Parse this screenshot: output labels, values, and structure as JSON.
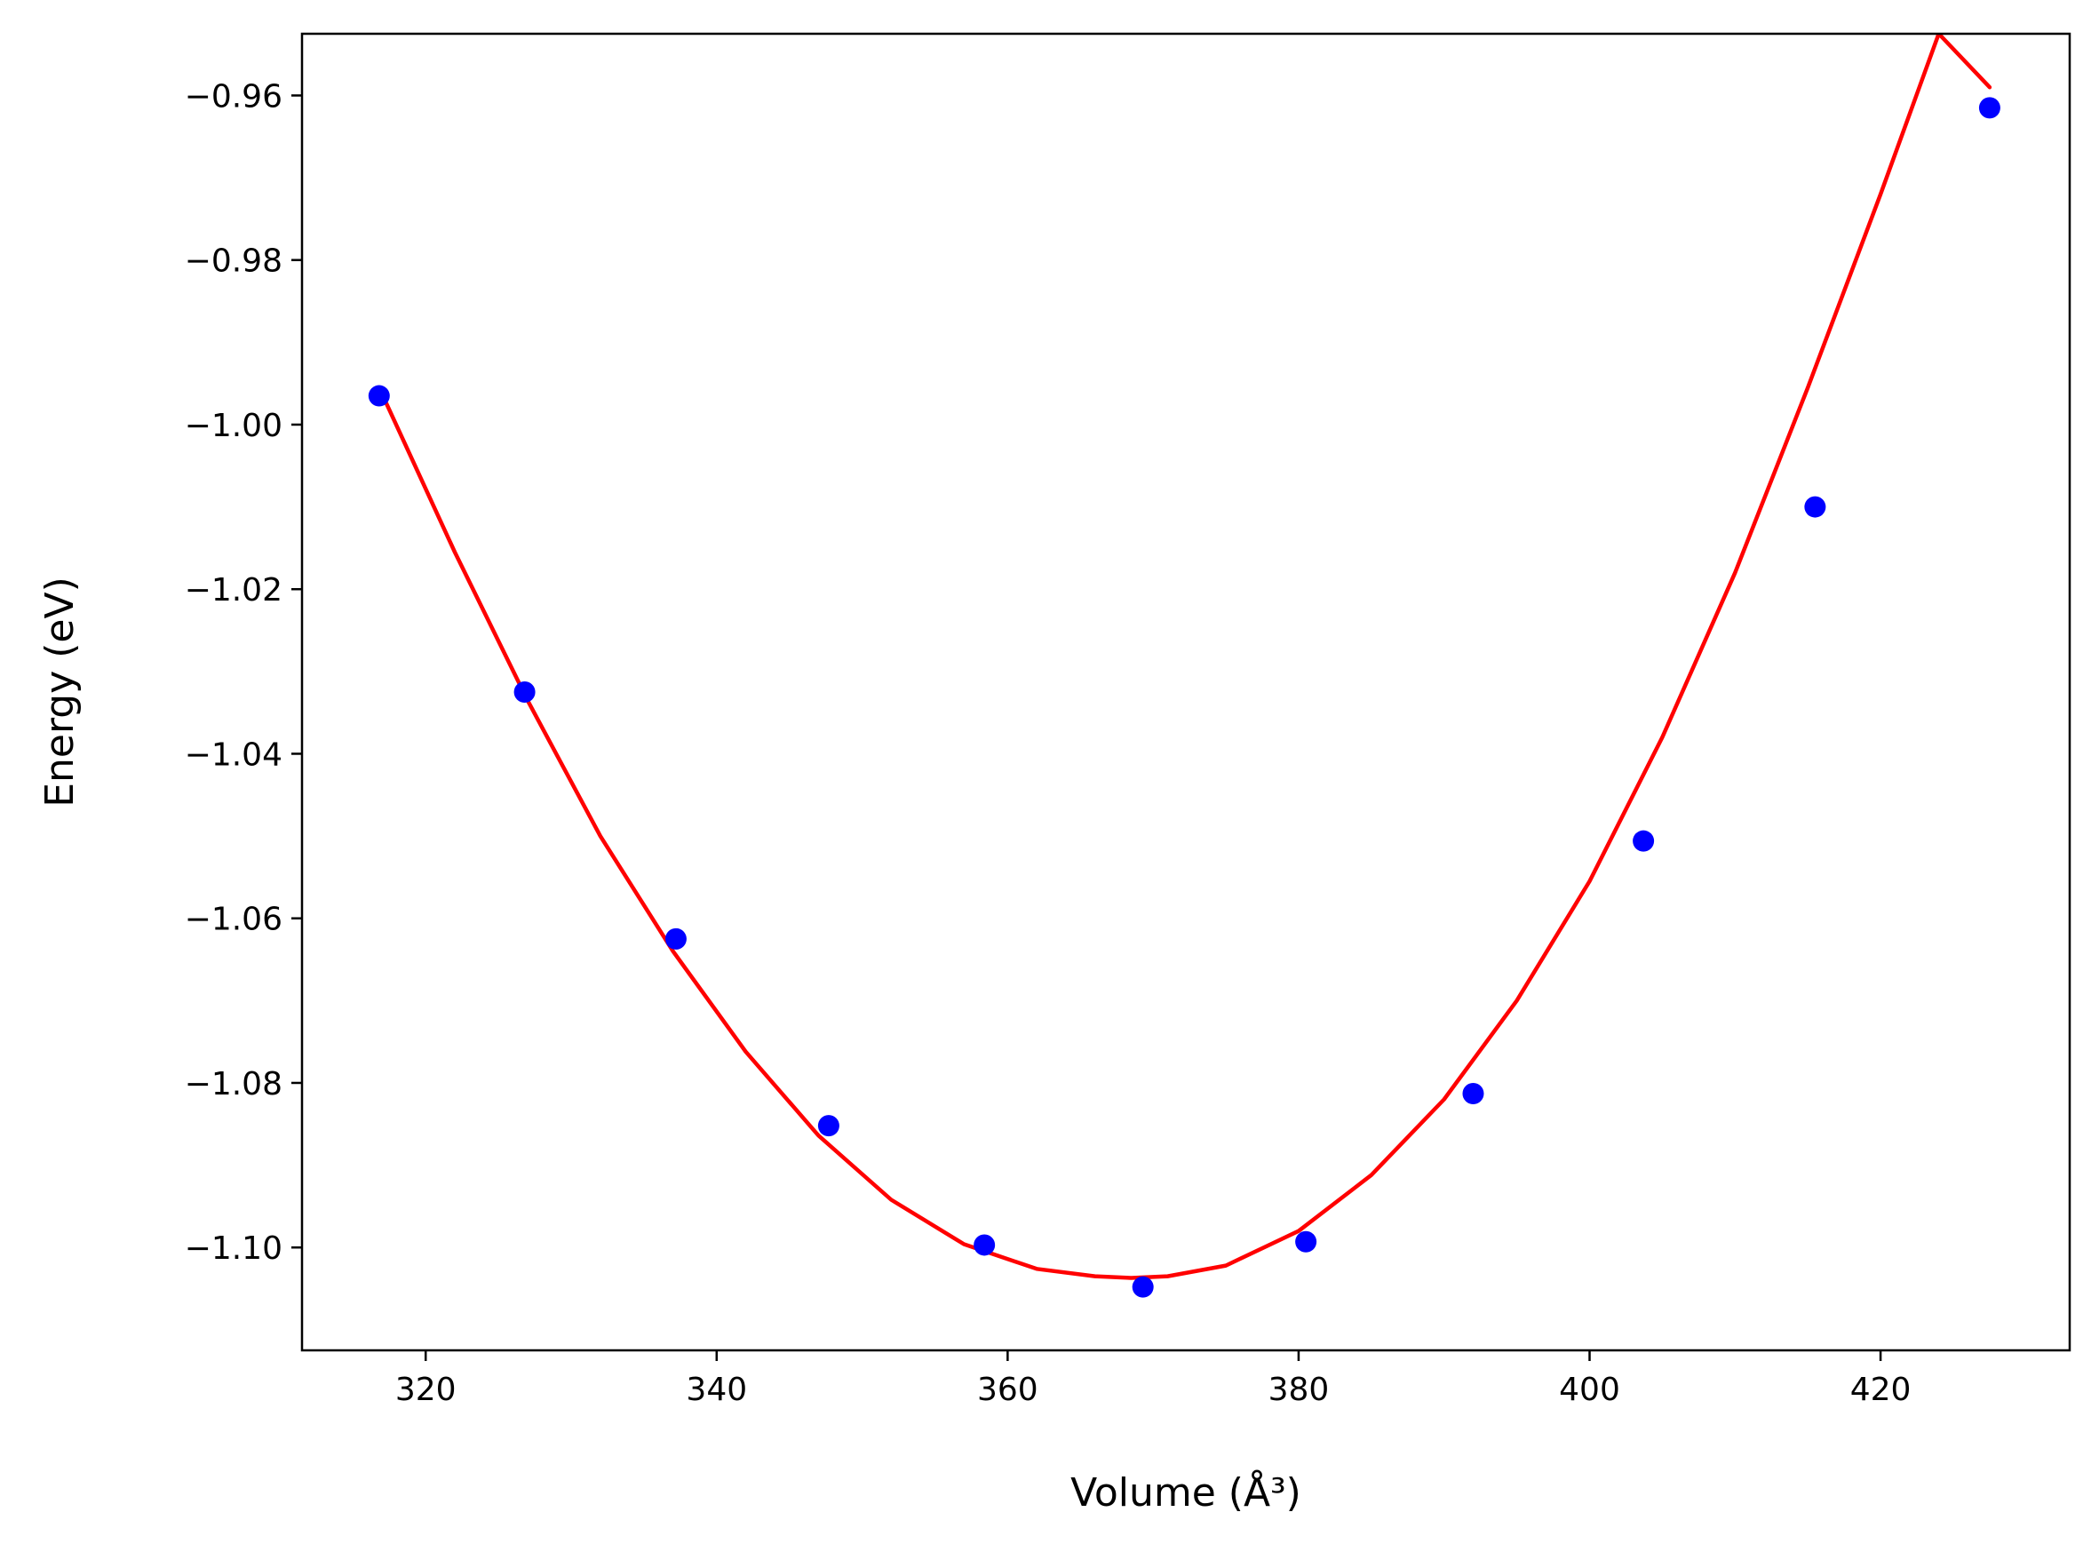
{
  "chart_data": {
    "type": "scatter",
    "title": "",
    "xlabel": "Volume (Å³)",
    "ylabel": "Energy (eV)",
    "xlim": [
      311.5,
      433.0
    ],
    "ylim": [
      -1.1125,
      -0.9525
    ],
    "xticks": [
      320,
      340,
      360,
      380,
      400,
      420
    ],
    "yticks": [
      -1.1,
      -1.08,
      -1.06,
      -1.04,
      -1.02,
      -1.0,
      -0.98,
      -0.96
    ],
    "xtick_labels": [
      "320",
      "340",
      "360",
      "380",
      "400",
      "420"
    ],
    "ytick_labels": [
      "−1.10",
      "−1.08",
      "−1.06",
      "−1.04",
      "−1.02",
      "−1.00",
      "−0.98",
      "−0.96"
    ],
    "grid": false,
    "series": [
      {
        "type": "scatter",
        "color": "#0000ff",
        "x": [
          316.8,
          326.8,
          337.2,
          347.7,
          358.4,
          369.3,
          380.5,
          392.0,
          403.7,
          415.5,
          427.5
        ],
        "y": [
          -0.9965,
          -1.0325,
          -1.0625,
          -1.0852,
          -1.0997,
          -1.1048,
          -1.0993,
          -1.0813,
          -1.0506,
          -1.01,
          -0.9615
        ]
      },
      {
        "type": "line",
        "color": "#ff0000",
        "x": [
          316.8,
          322.0,
          327.0,
          332.0,
          337.0,
          342.0,
          347.0,
          352.0,
          357.0,
          362.0,
          366.0,
          368.5,
          371.0,
          375.0,
          380.0,
          385.0,
          390.0,
          395.0,
          400.0,
          405.0,
          410.0,
          415.0,
          420.0,
          424.0,
          427.5
        ],
        "y": [
          -0.9955,
          -1.0155,
          -1.0335,
          -1.05,
          -1.064,
          -1.0762,
          -1.0864,
          -1.0942,
          -1.0996,
          -1.1026,
          -1.1035,
          -1.1037,
          -1.1035,
          -1.1022,
          -1.098,
          -1.0912,
          -1.082,
          -1.07,
          -1.0555,
          -1.038,
          -1.018,
          -0.9955,
          -0.972,
          -0.9525,
          -0.959
        ]
      }
    ]
  }
}
